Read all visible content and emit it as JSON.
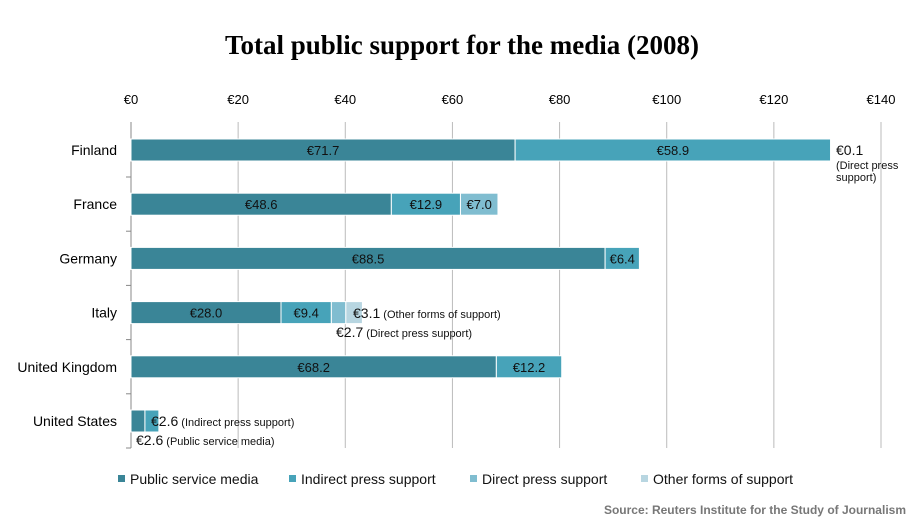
{
  "chart_data": {
    "type": "bar",
    "orientation": "horizontal",
    "stacked": true,
    "title": "Total public support for the media (2008)",
    "xlim": [
      0,
      140
    ],
    "x_ticks": [
      0,
      20,
      40,
      60,
      80,
      100,
      120,
      140
    ],
    "x_tick_labels": [
      "€0",
      "€20",
      "€40",
      "€60",
      "€80",
      "€100",
      "€120",
      "€140"
    ],
    "x_axis_position": "top",
    "grid": true,
    "legend_position": "bottom",
    "categories": [
      "Finland",
      "France",
      "Germany",
      "Italy",
      "United Kingdom",
      "United States"
    ],
    "series": [
      {
        "name": "Public service media",
        "color": "#3a8597",
        "values": [
          71.7,
          48.6,
          88.5,
          28.0,
          68.2,
          2.6
        ]
      },
      {
        "name": "Indirect press support",
        "color": "#47a3b9",
        "values": [
          58.9,
          12.9,
          6.4,
          9.4,
          12.2,
          2.6
        ]
      },
      {
        "name": "Direct press support",
        "color": "#80bdd0",
        "values": [
          0.1,
          7.0,
          0,
          2.7,
          0,
          0
        ]
      },
      {
        "name": "Other forms of support",
        "color": "#b8d6e1",
        "values": [
          0,
          0,
          0,
          3.1,
          0,
          0
        ]
      }
    ],
    "data_labels": [
      [
        "€71.7",
        "€48.6",
        "€88.5",
        "€28.0",
        "€68.2",
        ""
      ],
      [
        "€58.9",
        "€12.9",
        "€6.4",
        "€9.4",
        "€12.2",
        ""
      ],
      [
        "",
        "€7.0",
        "",
        "",
        "",
        ""
      ],
      [
        "",
        "",
        "",
        "",
        "",
        ""
      ]
    ],
    "annotations": [
      {
        "category": "Finland",
        "value": "€0.1",
        "note": "(Direct press support)"
      },
      {
        "category": "Italy",
        "value": "€3.1",
        "note": "(Other forms of support)"
      },
      {
        "category": "Italy",
        "value": "€2.7",
        "note": "(Direct press support)"
      },
      {
        "category": "United States",
        "value": "€2.6",
        "note": "(Indirect press support)"
      },
      {
        "category": "United States",
        "value": "€2.6",
        "note": "(Public service media)"
      }
    ],
    "source": "Source: Reuters Institute for the Study of Journalism"
  }
}
